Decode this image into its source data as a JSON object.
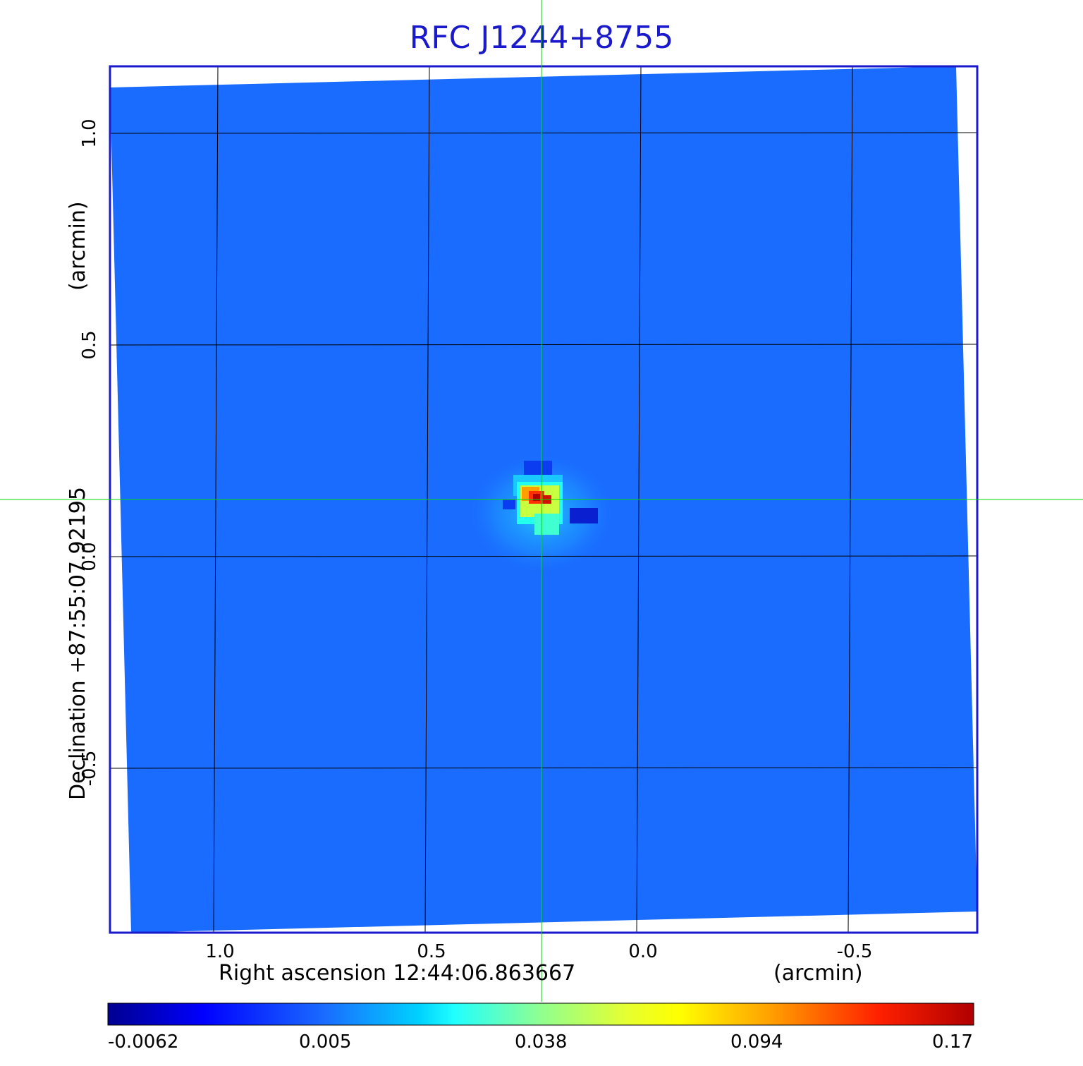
{
  "chart_data": {
    "type": "heatmap",
    "title": "RFC J1244+8755",
    "xlabel": "Right ascension  12:44:06.863667",
    "xunit": "(arcmin)",
    "ylabel": "Declination  +87:55:07.92195",
    "yunit": "(arcmin)",
    "x_ticks": [
      "1.0",
      "0.5",
      "0.0",
      "-0.5"
    ],
    "x_tick_values": [
      1.0,
      0.5,
      0.0,
      -0.5
    ],
    "y_ticks": [
      "1.0",
      "0.5",
      "0.0",
      "-0.5"
    ],
    "y_tick_values": [
      1.0,
      0.5,
      0.0,
      -0.5
    ],
    "xlim": [
      1.25,
      -0.8
    ],
    "ylim": [
      -0.89,
      1.155
    ],
    "colormap": "jet",
    "colorbar_ticks": [
      "-0.0062",
      "0.005",
      "0.038",
      "0.094",
      "0.17"
    ],
    "colorbar_range": [
      -0.0062,
      0.17
    ],
    "grid": true,
    "crosshair": {
      "x": 0.23,
      "y": 0.135,
      "color": "#00dd00"
    },
    "peak": {
      "x": 0.23,
      "y": 0.135,
      "value": 0.17
    },
    "background_value": 0.0,
    "colors": {
      "title": "#1a1acc",
      "frame": "#1a1acc",
      "background_map": "#1a6bff"
    }
  }
}
